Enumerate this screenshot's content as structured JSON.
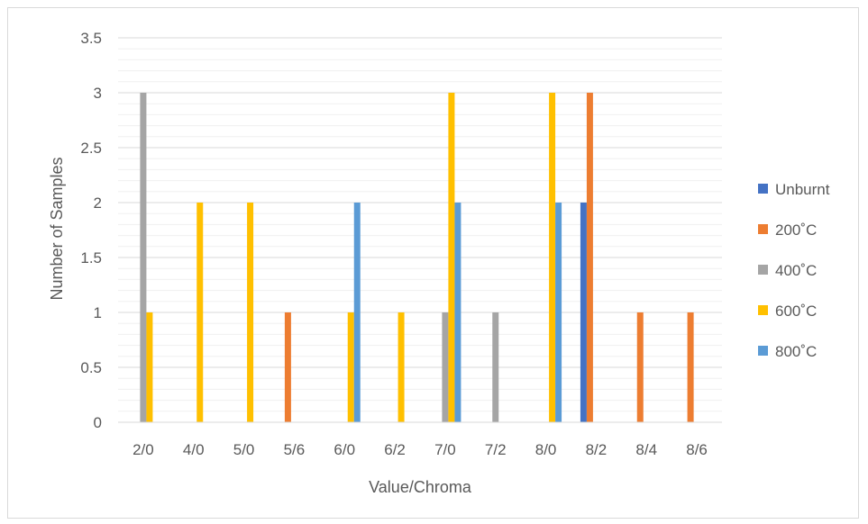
{
  "chart_data": {
    "type": "bar",
    "title": "",
    "xlabel": "Value/Chroma",
    "ylabel": "Number of Samples",
    "ylim": [
      0,
      3.5
    ],
    "yticks": [
      "0",
      "0.5",
      "1",
      "1.5",
      "2",
      "2.5",
      "3",
      "3.5"
    ],
    "grid": true,
    "legend_position": "right",
    "categories": [
      "2/0",
      "4/0",
      "5/0",
      "5/6",
      "6/0",
      "6/2",
      "7/0",
      "7/2",
      "8/0",
      "8/2",
      "8/4",
      "8/6"
    ],
    "series": [
      {
        "name": "Unburnt",
        "color": "#4472C4",
        "values": [
          0,
          0,
          0,
          0,
          0,
          0,
          0,
          0,
          0,
          2,
          0,
          0
        ]
      },
      {
        "name": "200˚C",
        "color": "#ED7D31",
        "values": [
          0,
          0,
          0,
          1,
          0,
          0,
          0,
          0,
          0,
          3,
          1,
          1
        ]
      },
      {
        "name": "400˚C",
        "color": "#A5A5A5",
        "values": [
          3,
          0,
          0,
          0,
          0,
          0,
          1,
          1,
          0,
          0,
          0,
          0
        ]
      },
      {
        "name": "600˚C",
        "color": "#FFC000",
        "values": [
          1,
          2,
          2,
          0,
          1,
          1,
          3,
          0,
          3,
          0,
          0,
          0
        ]
      },
      {
        "name": "800˚C",
        "color": "#5B9BD5",
        "values": [
          0,
          0,
          0,
          0,
          2,
          0,
          2,
          0,
          2,
          0,
          0,
          0
        ]
      }
    ]
  }
}
